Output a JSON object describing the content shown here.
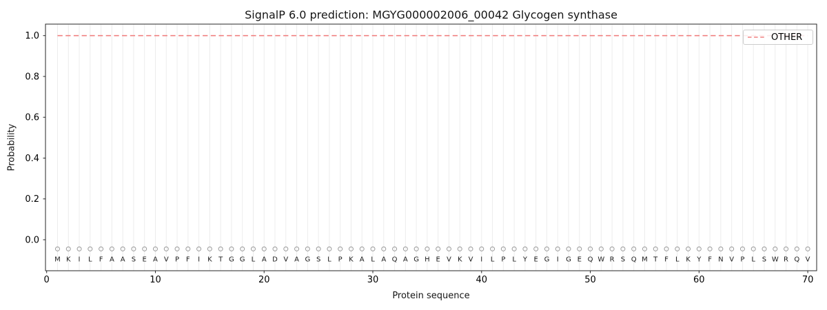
{
  "chart_data": {
    "type": "line",
    "title": "SignalP 6.0 prediction: MGYG000002006_00042 Glycogen synthase",
    "xlabel": "Protein sequence",
    "ylabel": "Probability",
    "xticks": [
      0,
      10,
      20,
      30,
      40,
      50,
      60,
      70
    ],
    "yticks": [
      0.0,
      0.2,
      0.4,
      0.6,
      0.8,
      1.0
    ],
    "ytick_labels": [
      "0.0",
      "0.2",
      "0.4",
      "0.6",
      "0.8",
      "1.0"
    ],
    "xlim": [
      -0.11,
      70.83
    ],
    "ylim": [
      -0.152,
      1.057
    ],
    "grid": "light vertical gridline at each residue position 1-70",
    "legend_position": "upper-right",
    "series": [
      {
        "name": "OTHER",
        "style": "dashed",
        "color": "#f08080",
        "x_first": 1,
        "x_last": 70,
        "y_constant": 1.0
      }
    ],
    "sequence": "MKILFAASEAVPFIKTGGLADVAGSLPKALAQAGHEVKVILPLYEGIGEQWRSQMTFLKYFNVPLSWRQV",
    "sequence_length": 70,
    "residue_markers": {
      "shape": "open-circle",
      "color": "#999999",
      "y_value": -0.045
    },
    "sequence_letters_y_value": -0.095,
    "colors": {
      "background": "#ffffff",
      "grid": "#ececec",
      "axes": "#262626",
      "tick_text": "#000000",
      "letter_text": "#1c1c1c"
    },
    "legend": {
      "items": [
        {
          "label": "OTHER",
          "style": "dashed",
          "color": "#f08080"
        }
      ]
    }
  }
}
